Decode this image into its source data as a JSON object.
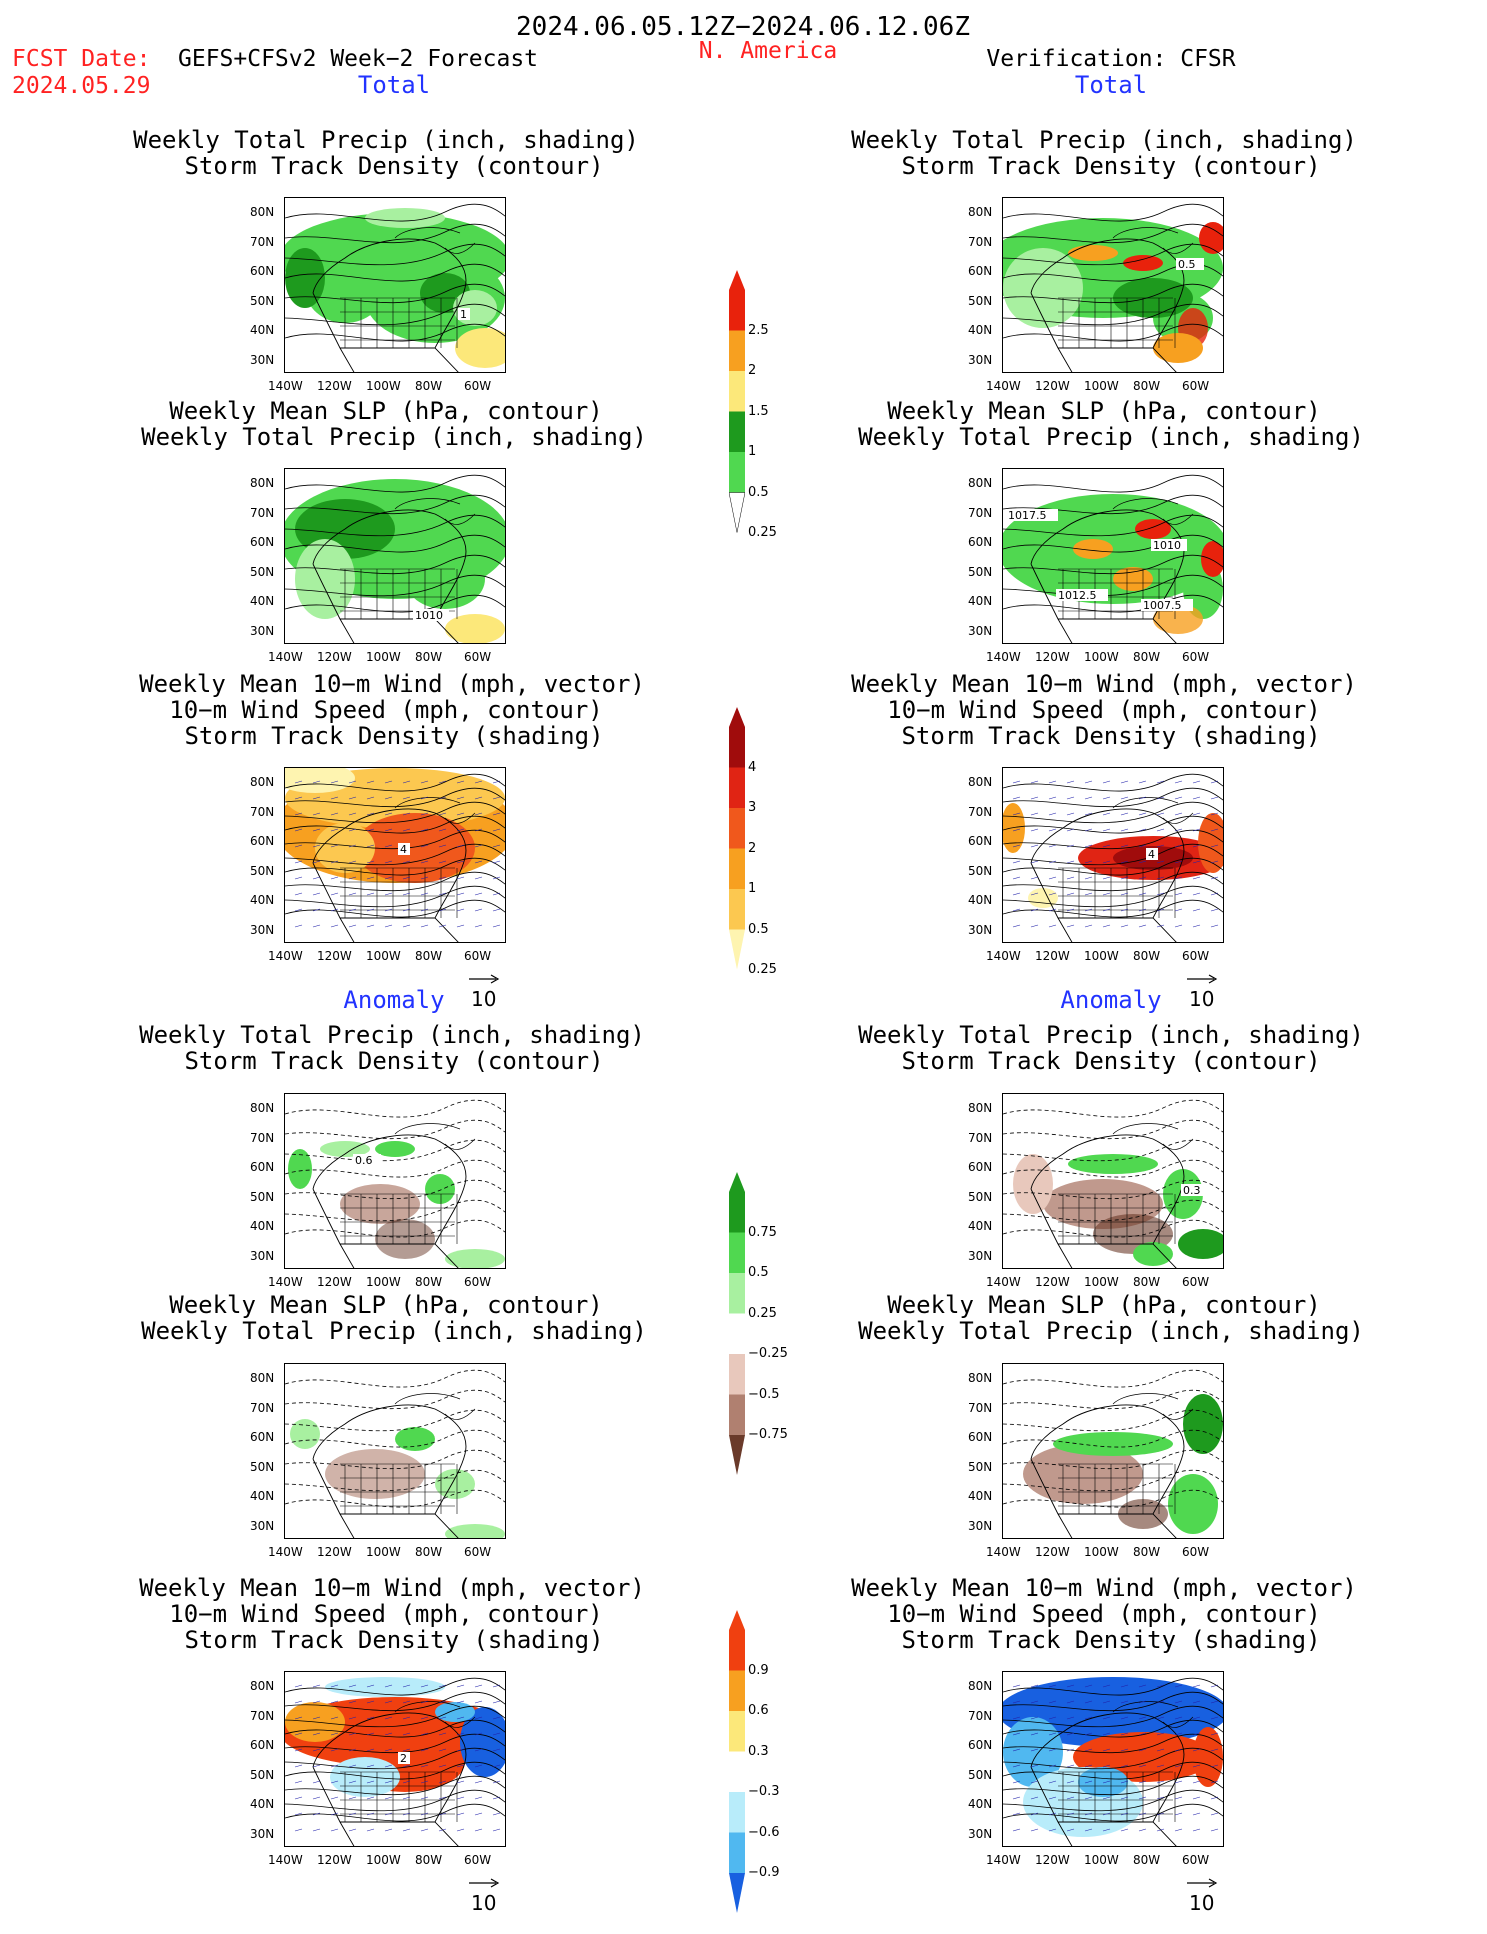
{
  "header": {
    "date_range": "2024.06.05.12Z−2024.06.12.06Z",
    "fcst_label": "FCST Date:",
    "model": "GEFS+CFSv2 Week−2 Forecast",
    "fcst_date": "2024.05.29",
    "region": "N. America",
    "verification": "Verification: CFSR"
  },
  "section_labels": {
    "total": "Total",
    "anomaly": "Anomaly"
  },
  "axes": {
    "lat_ticks": [
      "80N",
      "70N",
      "60N",
      "50N",
      "40N",
      "30N"
    ],
    "lon_ticks": [
      "140W",
      "120W",
      "100W",
      "80W",
      "60W"
    ],
    "vector_ref": "10"
  },
  "panel_titles": {
    "precip_storm": [
      "Weekly Total Precip (inch, shading)",
      "Storm Track Density (contour)"
    ],
    "slp_precip": [
      "Weekly Mean SLP (hPa, contour)",
      "Weekly Total Precip (inch, shading)"
    ],
    "wind": [
      "Weekly Mean 10−m Wind (mph, vector)",
      "10−m Wind Speed (mph, contour)",
      "Storm Track Density (shading)"
    ]
  },
  "map_labels": {
    "fcst_precip_total": "1",
    "verif_precip_total": "0.5",
    "fcst_slp_total": "1010",
    "verif_slp_total_a": "1017.5",
    "verif_slp_total_b": "1010",
    "verif_slp_total_c": "1012.5",
    "verif_slp_total_d": "1007.5",
    "fcst_wind_total": "4",
    "verif_wind_total": "4",
    "fcst_precip_anom": "0.6",
    "verif_precip_anom": "0.3",
    "fcst_wind_anom": "2"
  },
  "colorbars": {
    "precip_total": {
      "labels": [
        "2.5",
        "2",
        "1.5",
        "1",
        "0.5",
        "0.25"
      ],
      "colors": [
        "#e8220c",
        "#f7a020",
        "#fce87a",
        "#1e9a1e",
        "#50d850",
        "#a8f0a0"
      ]
    },
    "storm_total": {
      "labels": [
        "4",
        "3",
        "2",
        "1",
        "0.5",
        "0.25"
      ],
      "colors": [
        "#a00c0c",
        "#e02414",
        "#f0581c",
        "#f7a020",
        "#fcc850",
        "#fef4b0"
      ]
    },
    "precip_anom": {
      "labels": [
        "0.75",
        "0.5",
        "0.25",
        "−0.25",
        "−0.5",
        "−0.75"
      ],
      "colors": [
        "#1e9a1e",
        "#50d850",
        "#a8f0a0",
        "#ffffff",
        "#e8c8bc",
        "#b08070",
        "#6a3a2a"
      ]
    },
    "storm_anom": {
      "labels": [
        "0.9",
        "0.6",
        "0.3",
        "−0.3",
        "−0.6",
        "−0.9"
      ],
      "colors": [
        "#f04010",
        "#f7a020",
        "#fce87a",
        "#ffffff",
        "#b8ecfa",
        "#50b8f0",
        "#1860e0"
      ]
    }
  }
}
